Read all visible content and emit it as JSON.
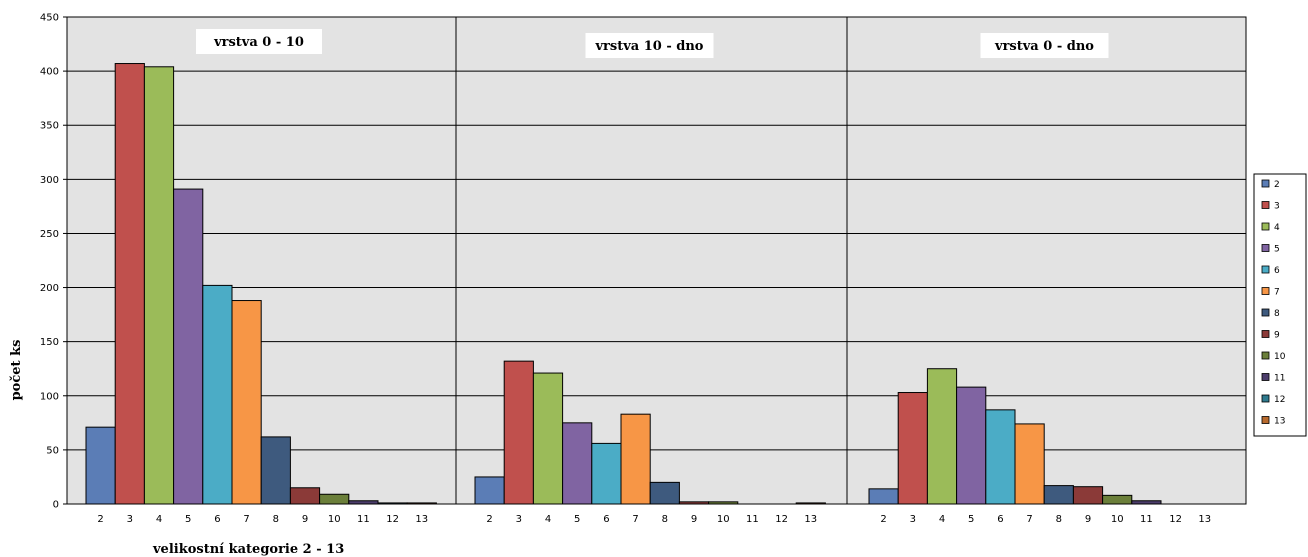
{
  "chart_data": {
    "type": "bar",
    "ylabel": "počet ks",
    "xlabel": "velikostní kategorie 2 - 13",
    "ylim": [
      0,
      450
    ],
    "yticks": [
      0,
      50,
      100,
      150,
      200,
      250,
      300,
      350,
      400,
      450
    ],
    "grid": true,
    "legend_position": "right",
    "categories": [
      "2",
      "3",
      "4",
      "5",
      "6",
      "7",
      "8",
      "9",
      "10",
      "11",
      "12",
      "13"
    ],
    "colors": [
      "#5b7db6",
      "#c0504d",
      "#9bbb59",
      "#8064a2",
      "#4bacc6",
      "#f79646",
      "#3e5a7e",
      "#8b3a38",
      "#6b7f3a",
      "#4c3d6b",
      "#2e7a8e",
      "#b86a2e"
    ],
    "panels": [
      {
        "title": "vrstva 0 - 10",
        "values": [
          71,
          407,
          404,
          291,
          202,
          188,
          62,
          15,
          9,
          3,
          1,
          1
        ]
      },
      {
        "title": "vrstva 10 - dno",
        "values": [
          25,
          132,
          121,
          75,
          56,
          83,
          20,
          2,
          2,
          0,
          0,
          1
        ]
      },
      {
        "title": "vrstva 0 - dno",
        "values": [
          14,
          103,
          125,
          108,
          87,
          74,
          17,
          16,
          8,
          3,
          0,
          0
        ]
      }
    ]
  }
}
